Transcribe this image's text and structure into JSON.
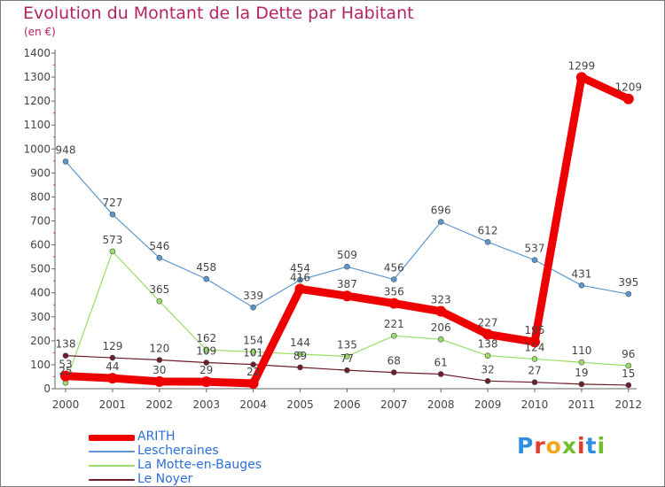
{
  "header": {
    "title": "Evolution du Montant de la Dette par Habitant",
    "subtitle": "(en €)"
  },
  "logo": {
    "text": "Proxiti",
    "colors": [
      "#2f8ee0",
      "#e23a2c",
      "#f4a51c",
      "#6fbf2f",
      "#e23a2c",
      "#2f8ee0",
      "#6fbf2f"
    ]
  },
  "chart_data": {
    "type": "line",
    "title": "Evolution du Montant de la Dette par Habitant",
    "subtitle": "(en €)",
    "x": [
      "2000",
      "2001",
      "2002",
      "2003",
      "2004",
      "2005",
      "2006",
      "2007",
      "2008",
      "2009",
      "2010",
      "2011",
      "2012"
    ],
    "y_ticks": [
      "0",
      "100",
      "200",
      "300",
      "400",
      "500",
      "600",
      "700",
      "800",
      "900",
      "1000",
      "1100",
      "1200",
      "1300",
      "1400"
    ],
    "ylim": [
      0,
      1400
    ],
    "grid": false,
    "legend_position": "bottom-left",
    "series": [
      {
        "name": "ARITH",
        "color": "#ef0000",
        "values": [
          53,
          44,
          30,
          29,
          22,
          416,
          387,
          356,
          323,
          227,
          195,
          1299,
          1209
        ]
      },
      {
        "name": "Lescheraines",
        "color": "#5b96d1",
        "values": [
          948,
          727,
          546,
          458,
          339,
          454,
          509,
          456,
          696,
          612,
          537,
          431,
          395
        ]
      },
      {
        "name": "La Motte-en-Bauges",
        "color": "#99dd66",
        "values": [
          25,
          573,
          365,
          162,
          154,
          144,
          135,
          221,
          206,
          138,
          124,
          110,
          96
        ]
      },
      {
        "name": "Le Noyer",
        "color": "#6e1d2a",
        "values": [
          138,
          129,
          120,
          109,
          101,
          89,
          77,
          68,
          61,
          32,
          27,
          19,
          15
        ]
      }
    ]
  }
}
